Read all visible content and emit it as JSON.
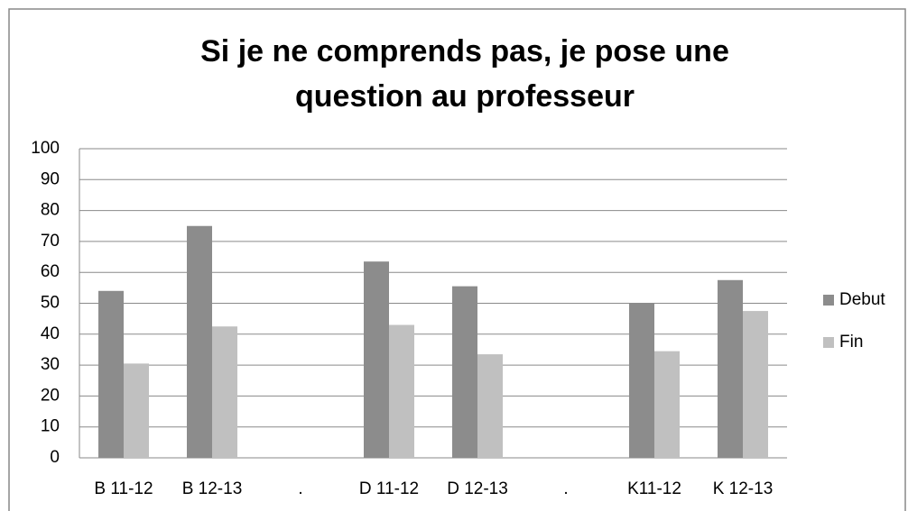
{
  "chart_data": {
    "type": "bar",
    "title": "Si je ne comprends pas, je pose une question au professeur",
    "categories": [
      "B 11-12",
      "B 12-13",
      ".",
      "D 11-12",
      "D 12-13",
      ".",
      "K11-12",
      "K 12-13"
    ],
    "series": [
      {
        "name": "Debut",
        "color": "#8c8c8c",
        "values": [
          54,
          75,
          null,
          63.5,
          55.5,
          null,
          50,
          57.5
        ]
      },
      {
        "name": "Fin",
        "color": "#c0c0c0",
        "values": [
          30.5,
          42.5,
          null,
          43,
          33.5,
          null,
          34.5,
          47.5
        ]
      }
    ],
    "ylim": [
      0,
      100
    ],
    "yticks": [
      0,
      10,
      20,
      30,
      40,
      50,
      60,
      70,
      80,
      90,
      100
    ],
    "grid": true,
    "legend": "right"
  }
}
